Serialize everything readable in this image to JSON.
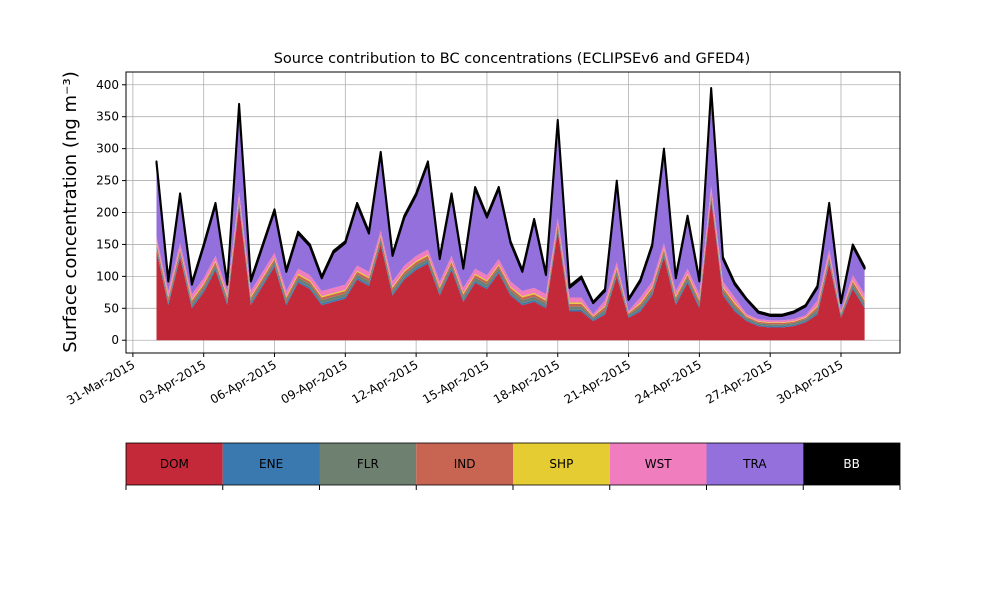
{
  "chart_data": {
    "type": "stacked_area",
    "title": "Source contribution to BC concentrations (ECLIPSEv6 and GFED4)",
    "y_label": "Surface concentration (ng m⁻³)",
    "x": [
      "2015-04-01 00:00",
      "2015-04-01 12:00",
      "2015-04-02 00:00",
      "2015-04-02 12:00",
      "2015-04-03 00:00",
      "2015-04-03 12:00",
      "2015-04-04 00:00",
      "2015-04-04 12:00",
      "2015-04-05 00:00",
      "2015-04-05 12:00",
      "2015-04-06 00:00",
      "2015-04-06 12:00",
      "2015-04-07 00:00",
      "2015-04-07 12:00",
      "2015-04-08 00:00",
      "2015-04-08 12:00",
      "2015-04-09 00:00",
      "2015-04-09 12:00",
      "2015-04-10 00:00",
      "2015-04-10 12:00",
      "2015-04-11 00:00",
      "2015-04-11 12:00",
      "2015-04-12 00:00",
      "2015-04-12 12:00",
      "2015-04-13 00:00",
      "2015-04-13 12:00",
      "2015-04-14 00:00",
      "2015-04-14 12:00",
      "2015-04-15 00:00",
      "2015-04-15 12:00",
      "2015-04-16 00:00",
      "2015-04-16 12:00",
      "2015-04-17 00:00",
      "2015-04-17 12:00",
      "2015-04-18 00:00",
      "2015-04-18 12:00",
      "2015-04-19 00:00",
      "2015-04-19 12:00",
      "2015-04-20 00:00",
      "2015-04-20 12:00",
      "2015-04-21 00:00",
      "2015-04-21 12:00",
      "2015-04-22 00:00",
      "2015-04-22 12:00",
      "2015-04-23 00:00",
      "2015-04-23 12:00",
      "2015-04-24 00:00",
      "2015-04-24 12:00",
      "2015-04-25 00:00",
      "2015-04-25 12:00",
      "2015-04-26 00:00",
      "2015-04-26 12:00",
      "2015-04-27 00:00",
      "2015-04-27 12:00",
      "2015-04-28 00:00",
      "2015-04-28 12:00",
      "2015-04-29 00:00",
      "2015-04-29 12:00",
      "2015-04-30 00:00",
      "2015-04-30 12:00",
      "2015-05-01 00:00"
    ],
    "series": [
      {
        "name": "DOM",
        "color": "#c4293a",
        "values": [
          140,
          55,
          130,
          50,
          75,
          110,
          55,
          210,
          55,
          85,
          115,
          55,
          90,
          80,
          55,
          60,
          65,
          95,
          85,
          150,
          70,
          95,
          110,
          120,
          70,
          110,
          60,
          90,
          80,
          105,
          70,
          55,
          60,
          50,
          170,
          45,
          45,
          30,
          40,
          100,
          35,
          45,
          70,
          130,
          55,
          90,
          50,
          220,
          70,
          45,
          30,
          22,
          20,
          20,
          22,
          28,
          40,
          120,
          35,
          80,
          50
        ]
      },
      {
        "name": "ENE",
        "color": "#3a78b0",
        "values": [
          3,
          3,
          3,
          3,
          3,
          3,
          3,
          3,
          3,
          3,
          3,
          3,
          3,
          3,
          3,
          3,
          3,
          3,
          3,
          3,
          3,
          3,
          3,
          3,
          3,
          3,
          3,
          3,
          3,
          3,
          3,
          3,
          3,
          3,
          3,
          3,
          3,
          2,
          3,
          3,
          2,
          3,
          3,
          3,
          3,
          3,
          3,
          3,
          3,
          3,
          2,
          2,
          2,
          2,
          2,
          2,
          3,
          3,
          2,
          3,
          3
        ]
      },
      {
        "name": "FLR",
        "color": "#6e8070",
        "values": [
          5,
          5,
          5,
          5,
          5,
          5,
          5,
          5,
          5,
          5,
          5,
          5,
          5,
          5,
          5,
          5,
          5,
          5,
          5,
          5,
          5,
          5,
          5,
          5,
          5,
          5,
          5,
          5,
          5,
          5,
          5,
          5,
          5,
          5,
          5,
          5,
          5,
          3,
          5,
          5,
          3,
          5,
          5,
          5,
          5,
          5,
          5,
          5,
          5,
          5,
          3,
          3,
          3,
          3,
          3,
          3,
          5,
          5,
          3,
          5,
          5
        ]
      },
      {
        "name": "IND",
        "color": "#c86452",
        "values": [
          4,
          4,
          4,
          4,
          4,
          4,
          4,
          4,
          4,
          4,
          4,
          4,
          4,
          4,
          4,
          4,
          4,
          4,
          4,
          4,
          4,
          4,
          4,
          4,
          4,
          4,
          4,
          4,
          4,
          4,
          4,
          4,
          4,
          4,
          4,
          4,
          4,
          2,
          4,
          4,
          2,
          4,
          4,
          4,
          4,
          4,
          4,
          4,
          4,
          4,
          2,
          2,
          2,
          2,
          2,
          2,
          4,
          4,
          2,
          4,
          4
        ]
      },
      {
        "name": "SHP",
        "color": "#e6cc33",
        "values": [
          2,
          2,
          2,
          2,
          2,
          2,
          2,
          2,
          2,
          2,
          2,
          2,
          2,
          2,
          2,
          2,
          2,
          2,
          2,
          2,
          2,
          2,
          2,
          2,
          2,
          2,
          2,
          2,
          2,
          2,
          2,
          2,
          2,
          2,
          2,
          2,
          2,
          1,
          2,
          2,
          1,
          2,
          2,
          2,
          2,
          2,
          2,
          2,
          2,
          2,
          1,
          1,
          1,
          1,
          1,
          1,
          2,
          2,
          1,
          2,
          2
        ]
      },
      {
        "name": "WST",
        "color": "#f07dbd",
        "values": [
          8,
          8,
          8,
          8,
          8,
          8,
          8,
          8,
          8,
          8,
          8,
          8,
          8,
          8,
          8,
          8,
          8,
          8,
          8,
          8,
          8,
          8,
          8,
          8,
          8,
          8,
          8,
          8,
          8,
          8,
          8,
          8,
          8,
          8,
          8,
          8,
          8,
          3,
          8,
          8,
          3,
          8,
          8,
          8,
          8,
          8,
          8,
          8,
          8,
          8,
          3,
          3,
          3,
          3,
          3,
          3,
          8,
          8,
          3,
          8,
          8
        ]
      },
      {
        "name": "TRA",
        "color": "#9370db",
        "values": [
          115,
          15,
          75,
          15,
          50,
          80,
          10,
          135,
          15,
          40,
          65,
          30,
          55,
          45,
          20,
          55,
          65,
          95,
          60,
          120,
          40,
          75,
          95,
          135,
          35,
          95,
          30,
          125,
          90,
          110,
          60,
          30,
          105,
          30,
          150,
          15,
          30,
          17,
          15,
          125,
          17,
          25,
          55,
          145,
          20,
          80,
          20,
          150,
          35,
          20,
          22,
          10,
          7,
          7,
          10,
          14,
          20,
          70,
          12,
          45,
          40
        ]
      },
      {
        "name": "BB",
        "color": "#000000",
        "values": [
          3,
          3,
          3,
          3,
          3,
          3,
          3,
          3,
          3,
          3,
          3,
          3,
          3,
          3,
          3,
          3,
          3,
          3,
          3,
          3,
          3,
          3,
          3,
          3,
          3,
          3,
          3,
          3,
          3,
          3,
          3,
          3,
          3,
          3,
          3,
          3,
          3,
          2,
          3,
          3,
          2,
          3,
          3,
          3,
          3,
          3,
          3,
          3,
          3,
          3,
          2,
          2,
          2,
          2,
          2,
          2,
          3,
          3,
          2,
          3,
          3
        ]
      }
    ],
    "xlim": [
      "2015-03-30 17:00",
      "2015-05-02 12:00"
    ],
    "xticks": [
      {
        "value": "2015-03-31",
        "label": "31-Mar-2015"
      },
      {
        "value": "2015-04-03",
        "label": "03-Apr-2015"
      },
      {
        "value": "2015-04-06",
        "label": "06-Apr-2015"
      },
      {
        "value": "2015-04-09",
        "label": "09-Apr-2015"
      },
      {
        "value": "2015-04-12",
        "label": "12-Apr-2015"
      },
      {
        "value": "2015-04-15",
        "label": "15-Apr-2015"
      },
      {
        "value": "2015-04-18",
        "label": "18-Apr-2015"
      },
      {
        "value": "2015-04-21",
        "label": "21-Apr-2015"
      },
      {
        "value": "2015-04-24",
        "label": "24-Apr-2015"
      },
      {
        "value": "2015-04-27",
        "label": "27-Apr-2015"
      },
      {
        "value": "2015-04-30",
        "label": "30-Apr-2015"
      }
    ],
    "ylim": [
      -20,
      420
    ],
    "yticks": [
      0,
      50,
      100,
      150,
      200,
      250,
      300,
      350,
      400
    ],
    "grid": true,
    "legend": "bottom"
  }
}
